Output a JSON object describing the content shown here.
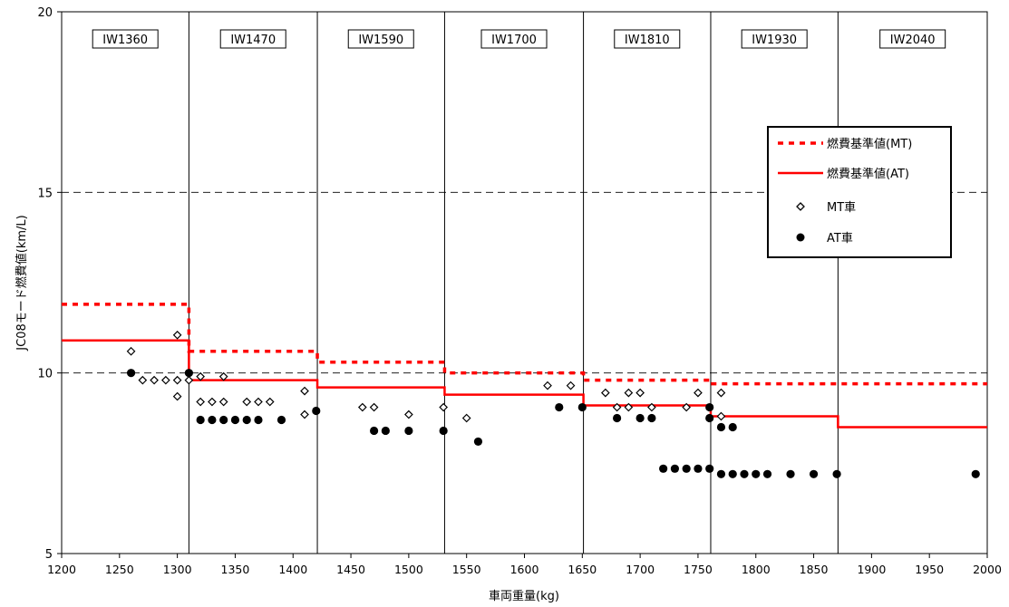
{
  "chart_data": {
    "type": "scatter",
    "xlabel": "車両重量(kg)",
    "ylabel": "JC08モード燃費値(km/L)",
    "xlim": [
      1200,
      2000
    ],
    "ylim": [
      5,
      20
    ],
    "x_ticks": [
      1200,
      1250,
      1300,
      1350,
      1400,
      1450,
      1500,
      1550,
      1600,
      1650,
      1700,
      1750,
      1800,
      1850,
      1900,
      1950,
      2000
    ],
    "y_ticks": [
      5,
      10,
      15,
      20
    ],
    "grid": "horizontal dashed at 10 and 15",
    "legend_position": "top-right",
    "classes": [
      {
        "label": "IW1360",
        "from": 1200,
        "to": 1310
      },
      {
        "label": "IW1470",
        "from": 1310,
        "to": 1421
      },
      {
        "label": "IW1590",
        "from": 1421,
        "to": 1531
      },
      {
        "label": "IW1700",
        "from": 1531,
        "to": 1651
      },
      {
        "label": "IW1810",
        "from": 1651,
        "to": 1761
      },
      {
        "label": "IW1930",
        "from": 1761,
        "to": 1871
      },
      {
        "label": "IW2040",
        "from": 1871,
        "to": 2000
      }
    ],
    "series": [
      {
        "name": "燃費基準値(MT)",
        "style": "dashed-step",
        "color": "#ff0000",
        "steps": [
          {
            "x0": 1200,
            "x1": 1310,
            "y": 11.9
          },
          {
            "x0": 1310,
            "x1": 1421,
            "y": 10.6
          },
          {
            "x0": 1421,
            "x1": 1531,
            "y": 10.3
          },
          {
            "x0": 1531,
            "x1": 1651,
            "y": 10.0
          },
          {
            "x0": 1651,
            "x1": 1761,
            "y": 9.8
          },
          {
            "x0": 1761,
            "x1": 2000,
            "y": 9.7
          }
        ]
      },
      {
        "name": "燃費基準値(AT)",
        "style": "solid-step",
        "color": "#ff0000",
        "steps": [
          {
            "x0": 1200,
            "x1": 1310,
            "y": 10.9
          },
          {
            "x0": 1310,
            "x1": 1421,
            "y": 9.8
          },
          {
            "x0": 1421,
            "x1": 1531,
            "y": 9.6
          },
          {
            "x0": 1531,
            "x1": 1651,
            "y": 9.4
          },
          {
            "x0": 1651,
            "x1": 1761,
            "y": 9.1
          },
          {
            "x0": 1761,
            "x1": 1871,
            "y": 8.8
          },
          {
            "x0": 1871,
            "x1": 2000,
            "y": 8.5
          }
        ]
      },
      {
        "name": "MT車",
        "style": "open-diamond",
        "points": [
          [
            1260,
            10.6
          ],
          [
            1270,
            9.8
          ],
          [
            1280,
            9.8
          ],
          [
            1290,
            9.8
          ],
          [
            1300,
            9.35
          ],
          [
            1300,
            9.8
          ],
          [
            1300,
            11.05
          ],
          [
            1310,
            9.8
          ],
          [
            1320,
            9.9
          ],
          [
            1320,
            9.2
          ],
          [
            1330,
            9.2
          ],
          [
            1340,
            9.2
          ],
          [
            1340,
            9.9
          ],
          [
            1360,
            9.2
          ],
          [
            1370,
            9.2
          ],
          [
            1380,
            9.2
          ],
          [
            1410,
            9.5
          ],
          [
            1410,
            8.85
          ],
          [
            1460,
            9.05
          ],
          [
            1470,
            9.05
          ],
          [
            1500,
            8.85
          ],
          [
            1530,
            9.05
          ],
          [
            1550,
            8.75
          ],
          [
            1620,
            9.65
          ],
          [
            1640,
            9.65
          ],
          [
            1670,
            9.45
          ],
          [
            1680,
            9.05
          ],
          [
            1690,
            9.45
          ],
          [
            1690,
            9.05
          ],
          [
            1700,
            9.45
          ],
          [
            1710,
            9.05
          ],
          [
            1740,
            9.05
          ],
          [
            1750,
            9.45
          ],
          [
            1770,
            9.45
          ],
          [
            1770,
            8.8
          ]
        ]
      },
      {
        "name": "AT車",
        "style": "filled-circle",
        "points": [
          [
            1260,
            10.0
          ],
          [
            1310,
            10.0
          ],
          [
            1320,
            8.7
          ],
          [
            1330,
            8.7
          ],
          [
            1340,
            8.7
          ],
          [
            1350,
            8.7
          ],
          [
            1360,
            8.7
          ],
          [
            1370,
            8.7
          ],
          [
            1390,
            8.7
          ],
          [
            1420,
            8.95
          ],
          [
            1470,
            8.4
          ],
          [
            1480,
            8.4
          ],
          [
            1500,
            8.4
          ],
          [
            1530,
            8.4
          ],
          [
            1560,
            8.1
          ],
          [
            1630,
            9.05
          ],
          [
            1650,
            9.05
          ],
          [
            1680,
            8.75
          ],
          [
            1700,
            8.75
          ],
          [
            1710,
            8.75
          ],
          [
            1720,
            7.35
          ],
          [
            1730,
            7.35
          ],
          [
            1740,
            7.35
          ],
          [
            1750,
            7.35
          ],
          [
            1760,
            7.35
          ],
          [
            1760,
            8.75
          ],
          [
            1760,
            9.05
          ],
          [
            1770,
            8.5
          ],
          [
            1780,
            8.5
          ],
          [
            1770,
            7.2
          ],
          [
            1780,
            7.2
          ],
          [
            1790,
            7.2
          ],
          [
            1800,
            7.2
          ],
          [
            1810,
            7.2
          ],
          [
            1830,
            7.2
          ],
          [
            1850,
            7.2
          ],
          [
            1870,
            7.2
          ],
          [
            1990,
            7.2
          ]
        ]
      }
    ]
  }
}
